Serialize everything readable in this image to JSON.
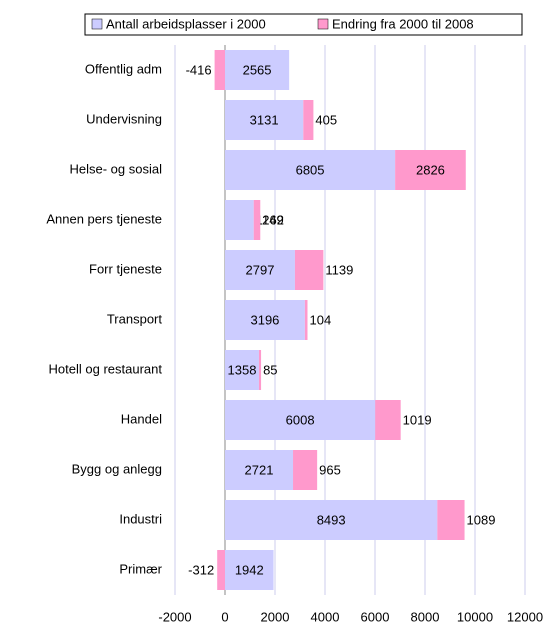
{
  "chart_data": {
    "type": "stacked-horizontal-bar",
    "categories": [
      "Offentlig adm",
      "Undervisning",
      "Helse- og sosial",
      "Annen pers tjeneste",
      "Forr tjeneste",
      "Transport",
      "Hotell og restaurant",
      "Handel",
      "Bygg og anlegg",
      "Industri",
      "Primær"
    ],
    "series": [
      {
        "name": "Antall arbeidsplasser i 2000",
        "color": "#ccccff",
        "values": [
          2565,
          3131,
          6805,
          1149,
          2797,
          3196,
          1358,
          6008,
          2721,
          8493,
          1942
        ]
      },
      {
        "name": "Endring fra 2000 til 2008",
        "color": "#ff99cc",
        "values": [
          -416,
          405,
          2826,
          262,
          1139,
          104,
          85,
          1019,
          965,
          1089,
          -312
        ]
      }
    ],
    "xlim": [
      -2000,
      12000
    ],
    "xticks": [
      -2000,
      0,
      2000,
      4000,
      6000,
      8000,
      10000,
      12000
    ],
    "grid": true,
    "legend": "top"
  }
}
